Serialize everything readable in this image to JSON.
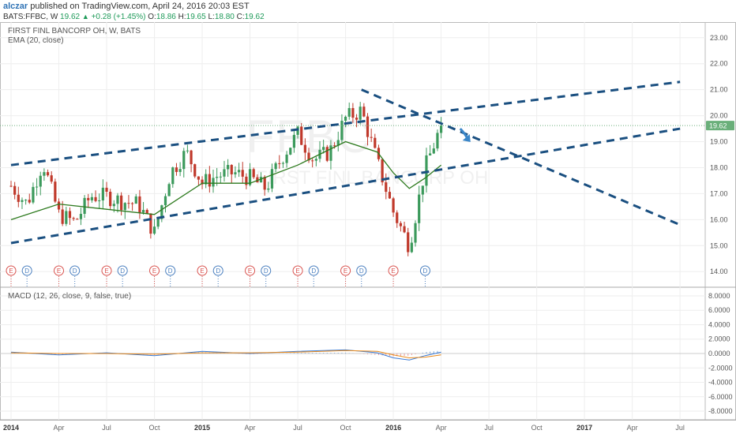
{
  "header": {
    "author": "alczar",
    "published_text": "published on TradingView.com, April 24, 2016 20:03 EST",
    "symbol": "BATS:FFBC, W",
    "last": "19.62",
    "change": "+0.28 (+1.45%)",
    "o_label": "O:",
    "o_value": "18.86",
    "h_label": "H:",
    "h_value": "19.65",
    "l_label": "L:",
    "l_value": "18.80",
    "c_label": "C:",
    "c_value": "19.62"
  },
  "legend": {
    "title": "FIRST FINL BANCORP OH, W, BATS",
    "ema": "EMA (20, close)",
    "macd": "MACD (12, 26, close, 9, false, true)"
  },
  "watermark": {
    "symbol": "FFBC",
    "name": "FIRST FINL BANCORP OH"
  },
  "price_badge": "19.62",
  "event_labels": {
    "earnings": "E",
    "dividend": "D"
  },
  "colors": {
    "up": "#3c9a5c",
    "down": "#c0392b",
    "ema": "#2d7a1e",
    "trend": "#1a4f80",
    "arrow": "#3a86c8",
    "macd": "#3a7bd5",
    "signal": "#e8891a",
    "badge": "#6aaf7a"
  },
  "chart_data": [
    {
      "type": "candlestick",
      "title": "FIRST FINL BANCORP OH, W, BATS",
      "yticks": [
        "14.00",
        "15.00",
        "16.00",
        "17.00",
        "18.00",
        "19.00",
        "20.00",
        "21.00",
        "22.00",
        "23.00"
      ],
      "ylim": [
        13.4,
        23.6
      ],
      "x_ticks": [
        "2014",
        "Apr",
        "Jul",
        "Oct",
        "2015",
        "Apr",
        "Jul",
        "Oct",
        "2016",
        "Apr",
        "Jul",
        "Oct",
        "2017",
        "Apr",
        "Jul"
      ],
      "close_points": [
        {
          "date": "2014-01",
          "close": 17.3
        },
        {
          "date": "2014-02",
          "close": 16.6
        },
        {
          "date": "2014-03",
          "close": 18.2
        },
        {
          "date": "2014-04",
          "close": 16.2
        },
        {
          "date": "2014-05",
          "close": 15.9
        },
        {
          "date": "2014-06",
          "close": 16.9
        },
        {
          "date": "2014-07",
          "close": 16.9
        },
        {
          "date": "2014-08",
          "close": 16.7
        },
        {
          "date": "2014-09",
          "close": 16.6
        },
        {
          "date": "2014-10",
          "close": 15.5
        },
        {
          "date": "2014-11",
          "close": 17.8
        },
        {
          "date": "2014-12",
          "close": 18.6
        },
        {
          "date": "2015-01",
          "close": 17.4
        },
        {
          "date": "2015-02",
          "close": 17.7
        },
        {
          "date": "2015-03",
          "close": 17.8
        },
        {
          "date": "2015-04",
          "close": 17.6
        },
        {
          "date": "2015-05",
          "close": 17.2
        },
        {
          "date": "2015-06",
          "close": 18.4
        },
        {
          "date": "2015-07",
          "close": 19.3
        },
        {
          "date": "2015-08",
          "close": 18.3
        },
        {
          "date": "2015-09",
          "close": 18.6
        },
        {
          "date": "2015-10",
          "close": 19.9
        },
        {
          "date": "2015-11",
          "close": 20.2
        },
        {
          "date": "2015-12",
          "close": 18.2
        },
        {
          "date": "2016-01",
          "close": 16.3
        },
        {
          "date": "2016-02",
          "close": 15.0
        },
        {
          "date": "2016-03",
          "close": 18.0
        },
        {
          "date": "2016-04",
          "close": 19.62
        }
      ],
      "ema20_points": [
        {
          "date": "2014-01",
          "value": 16.0
        },
        {
          "date": "2014-04",
          "value": 16.6
        },
        {
          "date": "2014-07",
          "value": 16.4
        },
        {
          "date": "2014-10",
          "value": 16.2
        },
        {
          "date": "2015-01",
          "value": 17.4
        },
        {
          "date": "2015-04",
          "value": 17.4
        },
        {
          "date": "2015-07",
          "value": 18.1
        },
        {
          "date": "2015-10",
          "value": 19.0
        },
        {
          "date": "2015-12",
          "value": 18.6
        },
        {
          "date": "2016-01",
          "value": 17.8
        },
        {
          "date": "2016-02",
          "value": 17.2
        },
        {
          "date": "2016-03",
          "value": 17.6
        },
        {
          "date": "2016-04",
          "value": 18.1
        }
      ],
      "events": [
        {
          "type": "E",
          "date": "2014-01"
        },
        {
          "type": "D",
          "date": "2014-02"
        },
        {
          "type": "E",
          "date": "2014-04"
        },
        {
          "type": "D",
          "date": "2014-05"
        },
        {
          "type": "E",
          "date": "2014-07"
        },
        {
          "type": "D",
          "date": "2014-08"
        },
        {
          "type": "E",
          "date": "2014-10"
        },
        {
          "type": "D",
          "date": "2014-11"
        },
        {
          "type": "E",
          "date": "2015-01"
        },
        {
          "type": "D",
          "date": "2015-02"
        },
        {
          "type": "E",
          "date": "2015-04"
        },
        {
          "type": "D",
          "date": "2015-05"
        },
        {
          "type": "E",
          "date": "2015-07"
        },
        {
          "type": "D",
          "date": "2015-08"
        },
        {
          "type": "E",
          "date": "2015-10"
        },
        {
          "type": "D",
          "date": "2015-11"
        },
        {
          "type": "E",
          "date": "2016-01"
        },
        {
          "type": "D",
          "date": "2016-03"
        }
      ],
      "trendlines": [
        {
          "from": {
            "date": "2014-01",
            "value": 18.1
          },
          "to": {
            "date": "2017-07",
            "value": 21.3
          }
        },
        {
          "from": {
            "date": "2014-01",
            "value": 15.1
          },
          "to": {
            "date": "2017-07",
            "value": 19.5
          }
        },
        {
          "from": {
            "date": "2015-11",
            "value": 21.0
          },
          "to": {
            "date": "2017-07",
            "value": 15.8
          }
        }
      ],
      "last_price": 19.62
    },
    {
      "type": "line",
      "title": "MACD (12, 26, close, 9, false, true)",
      "yticks": [
        "-8.0000",
        "-6.0000",
        "-4.0000",
        "-2.0000",
        "0.0000",
        "2.0000",
        "4.0000",
        "6.0000",
        "8.0000"
      ],
      "ylim": [
        -9.2,
        9.2
      ],
      "macd_points": [
        {
          "date": "2014-01",
          "value": 0.2
        },
        {
          "date": "2014-04",
          "value": -0.2
        },
        {
          "date": "2014-07",
          "value": 0.1
        },
        {
          "date": "2014-10",
          "value": -0.3
        },
        {
          "date": "2015-01",
          "value": 0.3
        },
        {
          "date": "2015-04",
          "value": 0.0
        },
        {
          "date": "2015-07",
          "value": 0.3
        },
        {
          "date": "2015-10",
          "value": 0.5
        },
        {
          "date": "2015-12",
          "value": 0.1
        },
        {
          "date": "2016-01",
          "value": -0.6
        },
        {
          "date": "2016-02",
          "value": -0.9
        },
        {
          "date": "2016-03",
          "value": -0.3
        },
        {
          "date": "2016-04",
          "value": 0.2
        }
      ],
      "signal_points": [
        {
          "date": "2014-01",
          "value": 0.1
        },
        {
          "date": "2014-04",
          "value": 0.0
        },
        {
          "date": "2014-07",
          "value": 0.0
        },
        {
          "date": "2014-10",
          "value": -0.1
        },
        {
          "date": "2015-01",
          "value": 0.1
        },
        {
          "date": "2015-04",
          "value": 0.1
        },
        {
          "date": "2015-07",
          "value": 0.2
        },
        {
          "date": "2015-10",
          "value": 0.4
        },
        {
          "date": "2015-12",
          "value": 0.3
        },
        {
          "date": "2016-01",
          "value": -0.2
        },
        {
          "date": "2016-02",
          "value": -0.6
        },
        {
          "date": "2016-03",
          "value": -0.5
        },
        {
          "date": "2016-04",
          "value": -0.2
        }
      ]
    }
  ]
}
